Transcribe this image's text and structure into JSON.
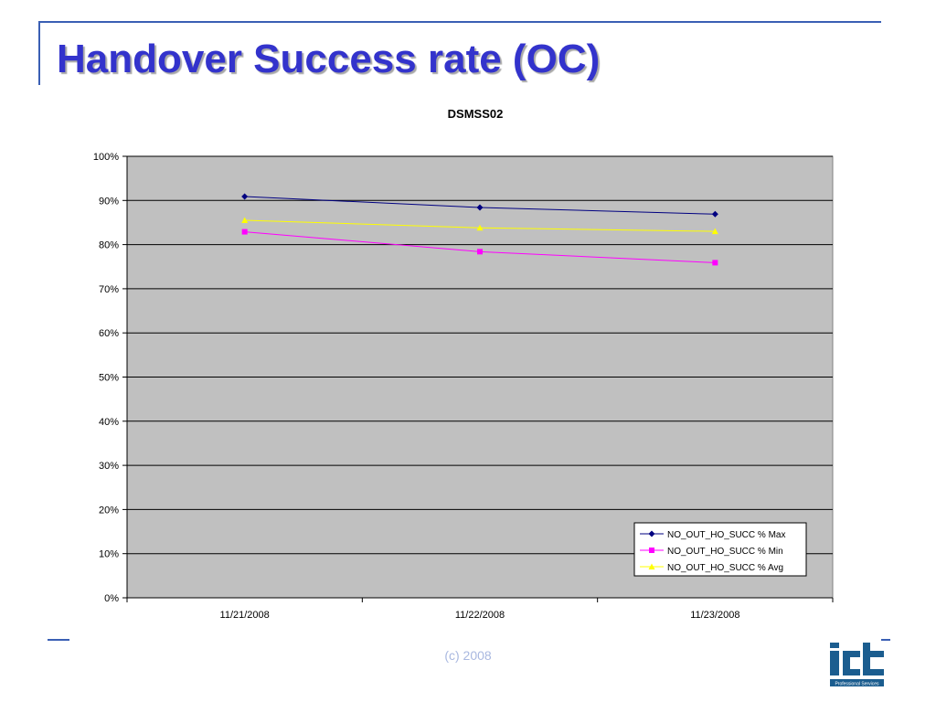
{
  "slide": {
    "title": "Handover Success rate (OC)",
    "footer": "(c) 2008"
  },
  "logo": {
    "brand_text": "ICT",
    "tagline": "Professional Services",
    "color": "#1b5d8f"
  },
  "colors": {
    "title": "#3333cc",
    "frame": "#3a5fb4",
    "plot_background": "#c0c0c0"
  },
  "chart_data": {
    "type": "line",
    "title": "DSMSS02",
    "xlabel": "",
    "ylabel": "",
    "categories": [
      "11/21/2008",
      "11/22/2008",
      "11/23/2008"
    ],
    "y_ticks": [
      "0%",
      "10%",
      "20%",
      "30%",
      "40%",
      "50%",
      "60%",
      "70%",
      "80%",
      "90%",
      "100%"
    ],
    "ylim": [
      0,
      100
    ],
    "y_unit": "%",
    "grid": true,
    "legend_position": "bottom-right",
    "series": [
      {
        "name": "NO_OUT_HO_SUCC % Max",
        "values": [
          90.9,
          88.4,
          86.9
        ],
        "color": "#000080",
        "marker": "diamond"
      },
      {
        "name": "NO_OUT_HO_SUCC % Min",
        "values": [
          82.9,
          78.4,
          75.9
        ],
        "color": "#ff00ff",
        "marker": "square"
      },
      {
        "name": "NO_OUT_HO_SUCC % Avg",
        "values": [
          85.5,
          83.8,
          83.0
        ],
        "color": "#ffff00",
        "marker": "triangle"
      }
    ]
  }
}
